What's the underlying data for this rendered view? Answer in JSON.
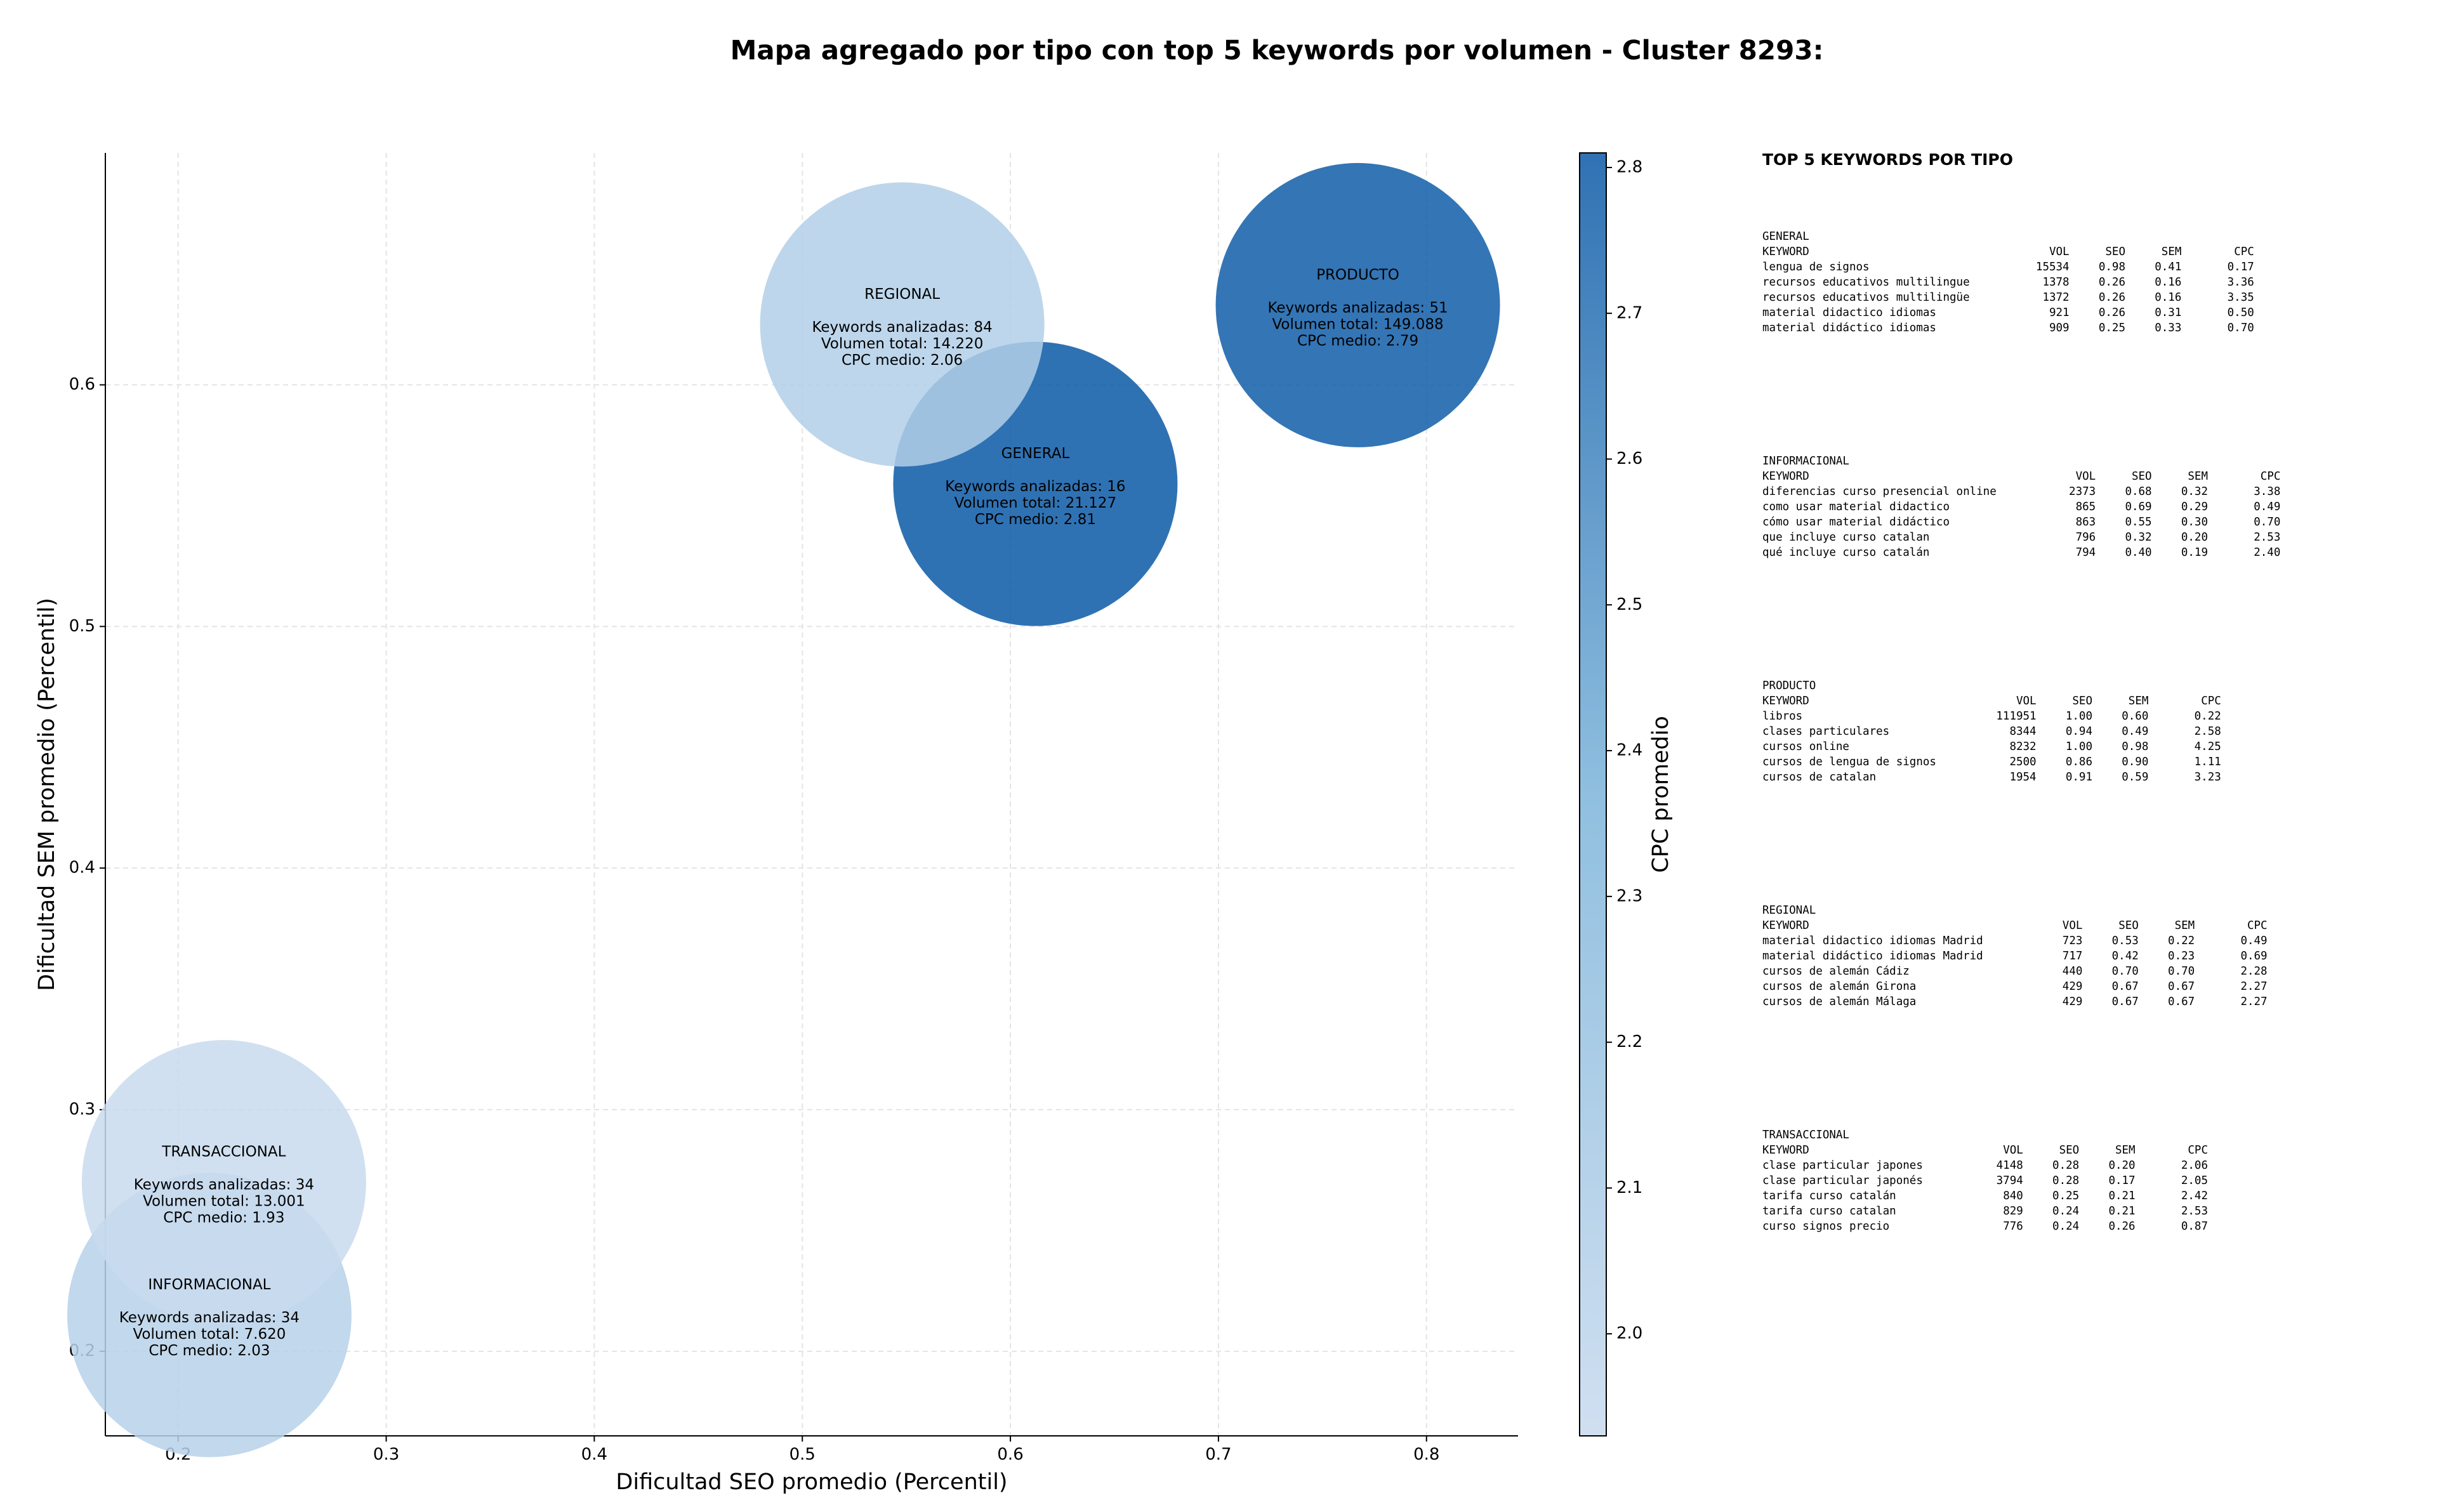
{
  "chart_data": {
    "type": "bubble",
    "title": "Mapa agregado por tipo con top 5 keywords por volumen - Cluster 8293:",
    "xlabel": "Dificultad SEO promedio (Percentil)",
    "ylabel": "Dificultad SEM promedio (Percentil)",
    "colorbar_label": "CPC promedio",
    "xlim": [
      0.165,
      0.844
    ],
    "ylim": [
      0.165,
      0.696
    ],
    "xticks": [
      0.2,
      0.3,
      0.4,
      0.5,
      0.6,
      0.7,
      0.8
    ],
    "yticks": [
      0.2,
      0.3,
      0.4,
      0.5,
      0.6
    ],
    "clim": [
      1.93,
      2.81
    ],
    "cticks": [
      {
        "value": 2.0,
        "label": "2.0"
      },
      2.1,
      2.2,
      2.3,
      2.4,
      2.5,
      2.6,
      2.7,
      2.8
    ],
    "colormap": [
      "#c8daee",
      "#7cb4da",
      "#0b59a6"
    ],
    "grid": true,
    "series": [
      {
        "name": "GENERAL",
        "x": 0.612,
        "y": 0.559,
        "cpc": 2.81,
        "annotation": [
          "Keywords analizadas: 16",
          "Volumen total: 21.127",
          "CPC medio: 2.81"
        ]
      },
      {
        "name": "INFORMACIONAL",
        "x": 0.215,
        "y": 0.215,
        "cpc": 2.03,
        "annotation": [
          "Keywords analizadas: 34",
          "Volumen total: 7.620",
          "CPC medio: 2.03"
        ]
      },
      {
        "name": "PRODUCTO",
        "x": 0.767,
        "y": 0.633,
        "cpc": 2.79,
        "annotation": [
          "Keywords analizadas: 51",
          "Volumen total: 149.088",
          "CPC medio: 2.79"
        ]
      },
      {
        "name": "REGIONAL",
        "x": 0.548,
        "y": 0.625,
        "cpc": 2.06,
        "annotation": [
          "Keywords analizadas: 84",
          "Volumen total: 14.220",
          "CPC medio: 2.06"
        ]
      },
      {
        "name": "TRANSACCIONAL",
        "x": 0.222,
        "y": 0.27,
        "cpc": 1.93,
        "annotation": [
          "Keywords analizadas: 34",
          "Volumen total: 13.001",
          "CPC medio: 1.93"
        ]
      }
    ]
  },
  "keywords_panel": {
    "title": "TOP 5 KEYWORDS POR TIPO",
    "groups": [
      {
        "name": "GENERAL",
        "header": [
          "KEYWORD",
          "VOL",
          "SEO",
          "SEM",
          "CPC"
        ],
        "rows": [
          [
            "lengua de signos",
            "15534",
            "0.98",
            "0.41",
            "0.17"
          ],
          [
            "recursos educativos multilingue",
            "1378",
            "0.26",
            "0.16",
            "3.36"
          ],
          [
            "recursos educativos multilingüe",
            "1372",
            "0.26",
            "0.16",
            "3.35"
          ],
          [
            "material didactico idiomas",
            "921",
            "0.26",
            "0.31",
            "0.50"
          ],
          [
            "material didáctico idiomas",
            "909",
            "0.25",
            "0.33",
            "0.70"
          ]
        ]
      },
      {
        "name": "INFORMACIONAL",
        "header": [
          "KEYWORD",
          "VOL",
          "SEO",
          "SEM",
          "CPC"
        ],
        "rows": [
          [
            "diferencias curso presencial online",
            "2373",
            "0.68",
            "0.32",
            "3.38"
          ],
          [
            "como usar material didactico",
            "865",
            "0.69",
            "0.29",
            "0.49"
          ],
          [
            "cómo usar material didáctico",
            "863",
            "0.55",
            "0.30",
            "0.70"
          ],
          [
            "que incluye curso catalan",
            "796",
            "0.32",
            "0.20",
            "2.53"
          ],
          [
            "qué incluye curso catalán",
            "794",
            "0.40",
            "0.19",
            "2.40"
          ]
        ]
      },
      {
        "name": "PRODUCTO",
        "header": [
          "KEYWORD",
          "VOL",
          "SEO",
          "SEM",
          "CPC"
        ],
        "rows": [
          [
            "libros",
            "111951",
            "1.00",
            "0.60",
            "0.22"
          ],
          [
            "clases particulares",
            "8344",
            "0.94",
            "0.49",
            "2.58"
          ],
          [
            "cursos online",
            "8232",
            "1.00",
            "0.98",
            "4.25"
          ],
          [
            "cursos de lengua de signos",
            "2500",
            "0.86",
            "0.90",
            "1.11"
          ],
          [
            "cursos de catalan",
            "1954",
            "0.91",
            "0.59",
            "3.23"
          ]
        ]
      },
      {
        "name": "REGIONAL",
        "header": [
          "KEYWORD",
          "VOL",
          "SEO",
          "SEM",
          "CPC"
        ],
        "rows": [
          [
            "material didactico idiomas Madrid",
            "723",
            "0.53",
            "0.22",
            "0.49"
          ],
          [
            "material didáctico idiomas Madrid",
            "717",
            "0.42",
            "0.23",
            "0.69"
          ],
          [
            "cursos de alemán Cádiz",
            "440",
            "0.70",
            "0.70",
            "2.28"
          ],
          [
            "cursos de alemán Girona",
            "429",
            "0.67",
            "0.67",
            "2.27"
          ],
          [
            "cursos de alemán Málaga",
            "429",
            "0.67",
            "0.67",
            "2.27"
          ]
        ]
      },
      {
        "name": "TRANSACCIONAL",
        "header": [
          "KEYWORD",
          "VOL",
          "SEO",
          "SEM",
          "CPC"
        ],
        "rows": [
          [
            "clase particular japones",
            "4148",
            "0.28",
            "0.20",
            "2.06"
          ],
          [
            "clase particular japonés",
            "3794",
            "0.28",
            "0.17",
            "2.05"
          ],
          [
            "tarifa curso catalán",
            "840",
            "0.25",
            "0.21",
            "2.42"
          ],
          [
            "tarifa curso catalan",
            "829",
            "0.24",
            "0.21",
            "2.53"
          ],
          [
            "curso signos precio",
            "776",
            "0.24",
            "0.26",
            "0.87"
          ]
        ]
      }
    ]
  }
}
